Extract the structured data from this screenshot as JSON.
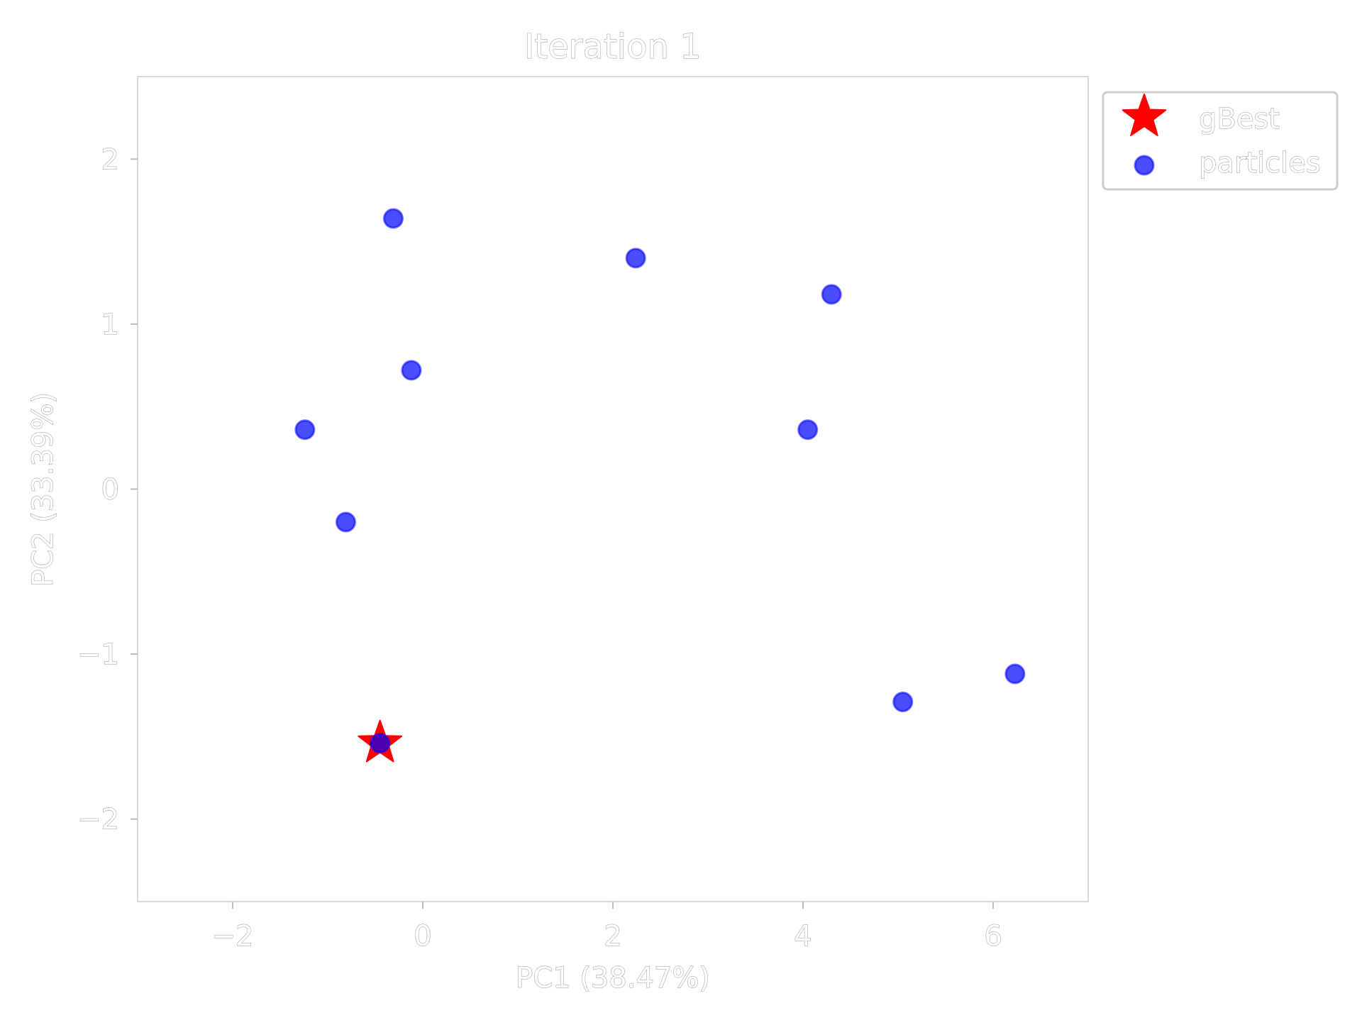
{
  "chart_data": {
    "type": "scatter",
    "title": "Iteration 1",
    "xlabel": "PC1 (38.47%)",
    "ylabel": "PC2 (33.39%)",
    "xlim": [
      -3,
      7
    ],
    "ylim": [
      -2.5,
      2.5
    ],
    "xticks": [
      -2,
      0,
      2,
      4,
      6
    ],
    "yticks": [
      -2,
      -1,
      0,
      1,
      2
    ],
    "x_tick_labels": [
      "−2",
      "0",
      "2",
      "4",
      "6"
    ],
    "y_tick_labels": [
      "−2",
      "−1",
      "0",
      "1",
      "2"
    ],
    "grid": false,
    "legend_position": "outside upper right",
    "series": [
      {
        "name": "gBest",
        "marker": "star",
        "color": "#ff0000",
        "points": [
          {
            "x": -0.45,
            "y": -1.54
          }
        ]
      },
      {
        "name": "particles",
        "marker": "circle",
        "color": "#0000ff",
        "opacity": 0.7,
        "points": [
          {
            "x": -0.31,
            "y": 1.64
          },
          {
            "x": 2.24,
            "y": 1.4
          },
          {
            "x": 4.3,
            "y": 1.18
          },
          {
            "x": -0.12,
            "y": 0.72
          },
          {
            "x": -1.24,
            "y": 0.36
          },
          {
            "x": 4.05,
            "y": 0.36
          },
          {
            "x": -0.81,
            "y": -0.2
          },
          {
            "x": 5.05,
            "y": -1.29
          },
          {
            "x": 6.23,
            "y": -1.12
          },
          {
            "x": -0.45,
            "y": -1.54
          }
        ]
      }
    ]
  }
}
